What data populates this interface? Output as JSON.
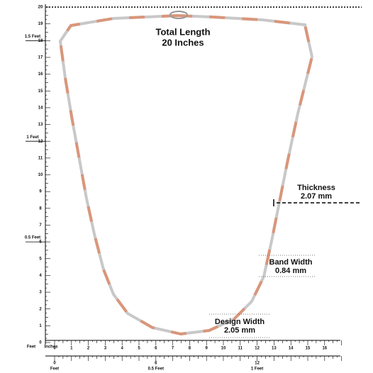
{
  "title": {
    "line1": "Total Length",
    "line2": "20 Inches"
  },
  "thickness": {
    "label": "Thickness",
    "value": "2.07 mm"
  },
  "band_width": {
    "label": "Band Width",
    "value": "0.84 mm"
  },
  "design_width": {
    "label": "Design Width",
    "value": "2.05 mm"
  },
  "vertical_ruler": {
    "inches": [
      0,
      1,
      2,
      3,
      4,
      5,
      6,
      7,
      8,
      9,
      10,
      11,
      12,
      13,
      14,
      15,
      16,
      17,
      18,
      19,
      20
    ],
    "feet_marks": [
      {
        "inch": 18,
        "label": "1.5 Feet"
      },
      {
        "inch": 12,
        "label": "1 Feet"
      },
      {
        "inch": 6,
        "label": "0.5 Feet"
      }
    ],
    "unit_feet": "Feet",
    "unit_inches": "Inches"
  },
  "horizontal_ruler": {
    "inches": [
      0,
      1,
      2,
      3,
      4,
      5,
      6,
      7,
      8,
      9,
      10,
      11,
      12,
      13,
      14,
      15,
      16
    ],
    "feet_marks": [
      {
        "inch": 6,
        "label": "0.5 Feet"
      },
      {
        "inch": 12,
        "label": "1 Feet"
      }
    ],
    "unit_feet": "Feet"
  }
}
